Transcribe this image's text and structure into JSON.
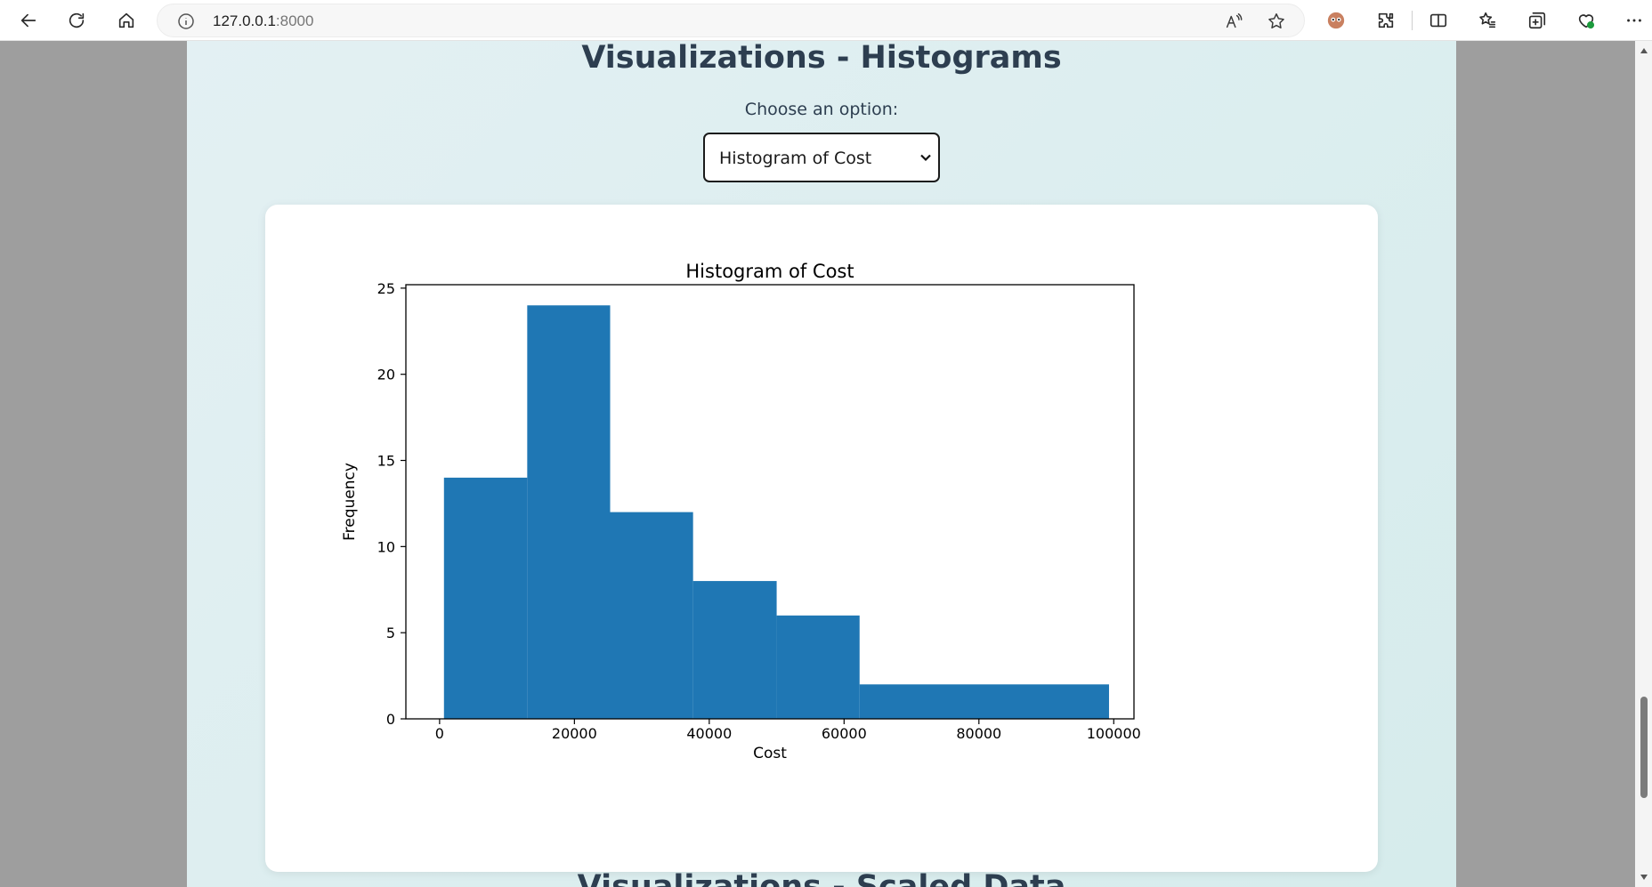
{
  "browser": {
    "url_host": "127.0.0.1",
    "url_port": ":8000",
    "icons": [
      "back-icon",
      "refresh-icon",
      "home-icon",
      "info-icon",
      "read-aloud-icon",
      "favorite-star-icon",
      "profile-icon",
      "extensions-icon",
      "split-screen-icon",
      "favorites-icon",
      "collections-icon",
      "browser-essentials-icon",
      "more-icon"
    ]
  },
  "page": {
    "section_title": "Visualizations - Histograms",
    "choose_label": "Choose an option:",
    "select_value": "Histogram of Cost",
    "next_section_title": "Visualizations - Scaled Data"
  },
  "chart_data": {
    "type": "bar",
    "title": "Histogram of Cost",
    "xlabel": "Cost",
    "ylabel": "Frequency",
    "bin_edges": [
      650,
      13000,
      25300,
      37600,
      50000,
      62300,
      99300
    ],
    "values": [
      14,
      24,
      12,
      8,
      6,
      2
    ],
    "xlim": [
      -5000,
      103000
    ],
    "ylim": [
      0,
      25.2
    ],
    "xticks": [
      0,
      20000,
      40000,
      60000,
      80000,
      100000
    ],
    "yticks": [
      0,
      5,
      10,
      15,
      20,
      25
    ],
    "bar_color": "#1f77b4",
    "grid": false
  }
}
